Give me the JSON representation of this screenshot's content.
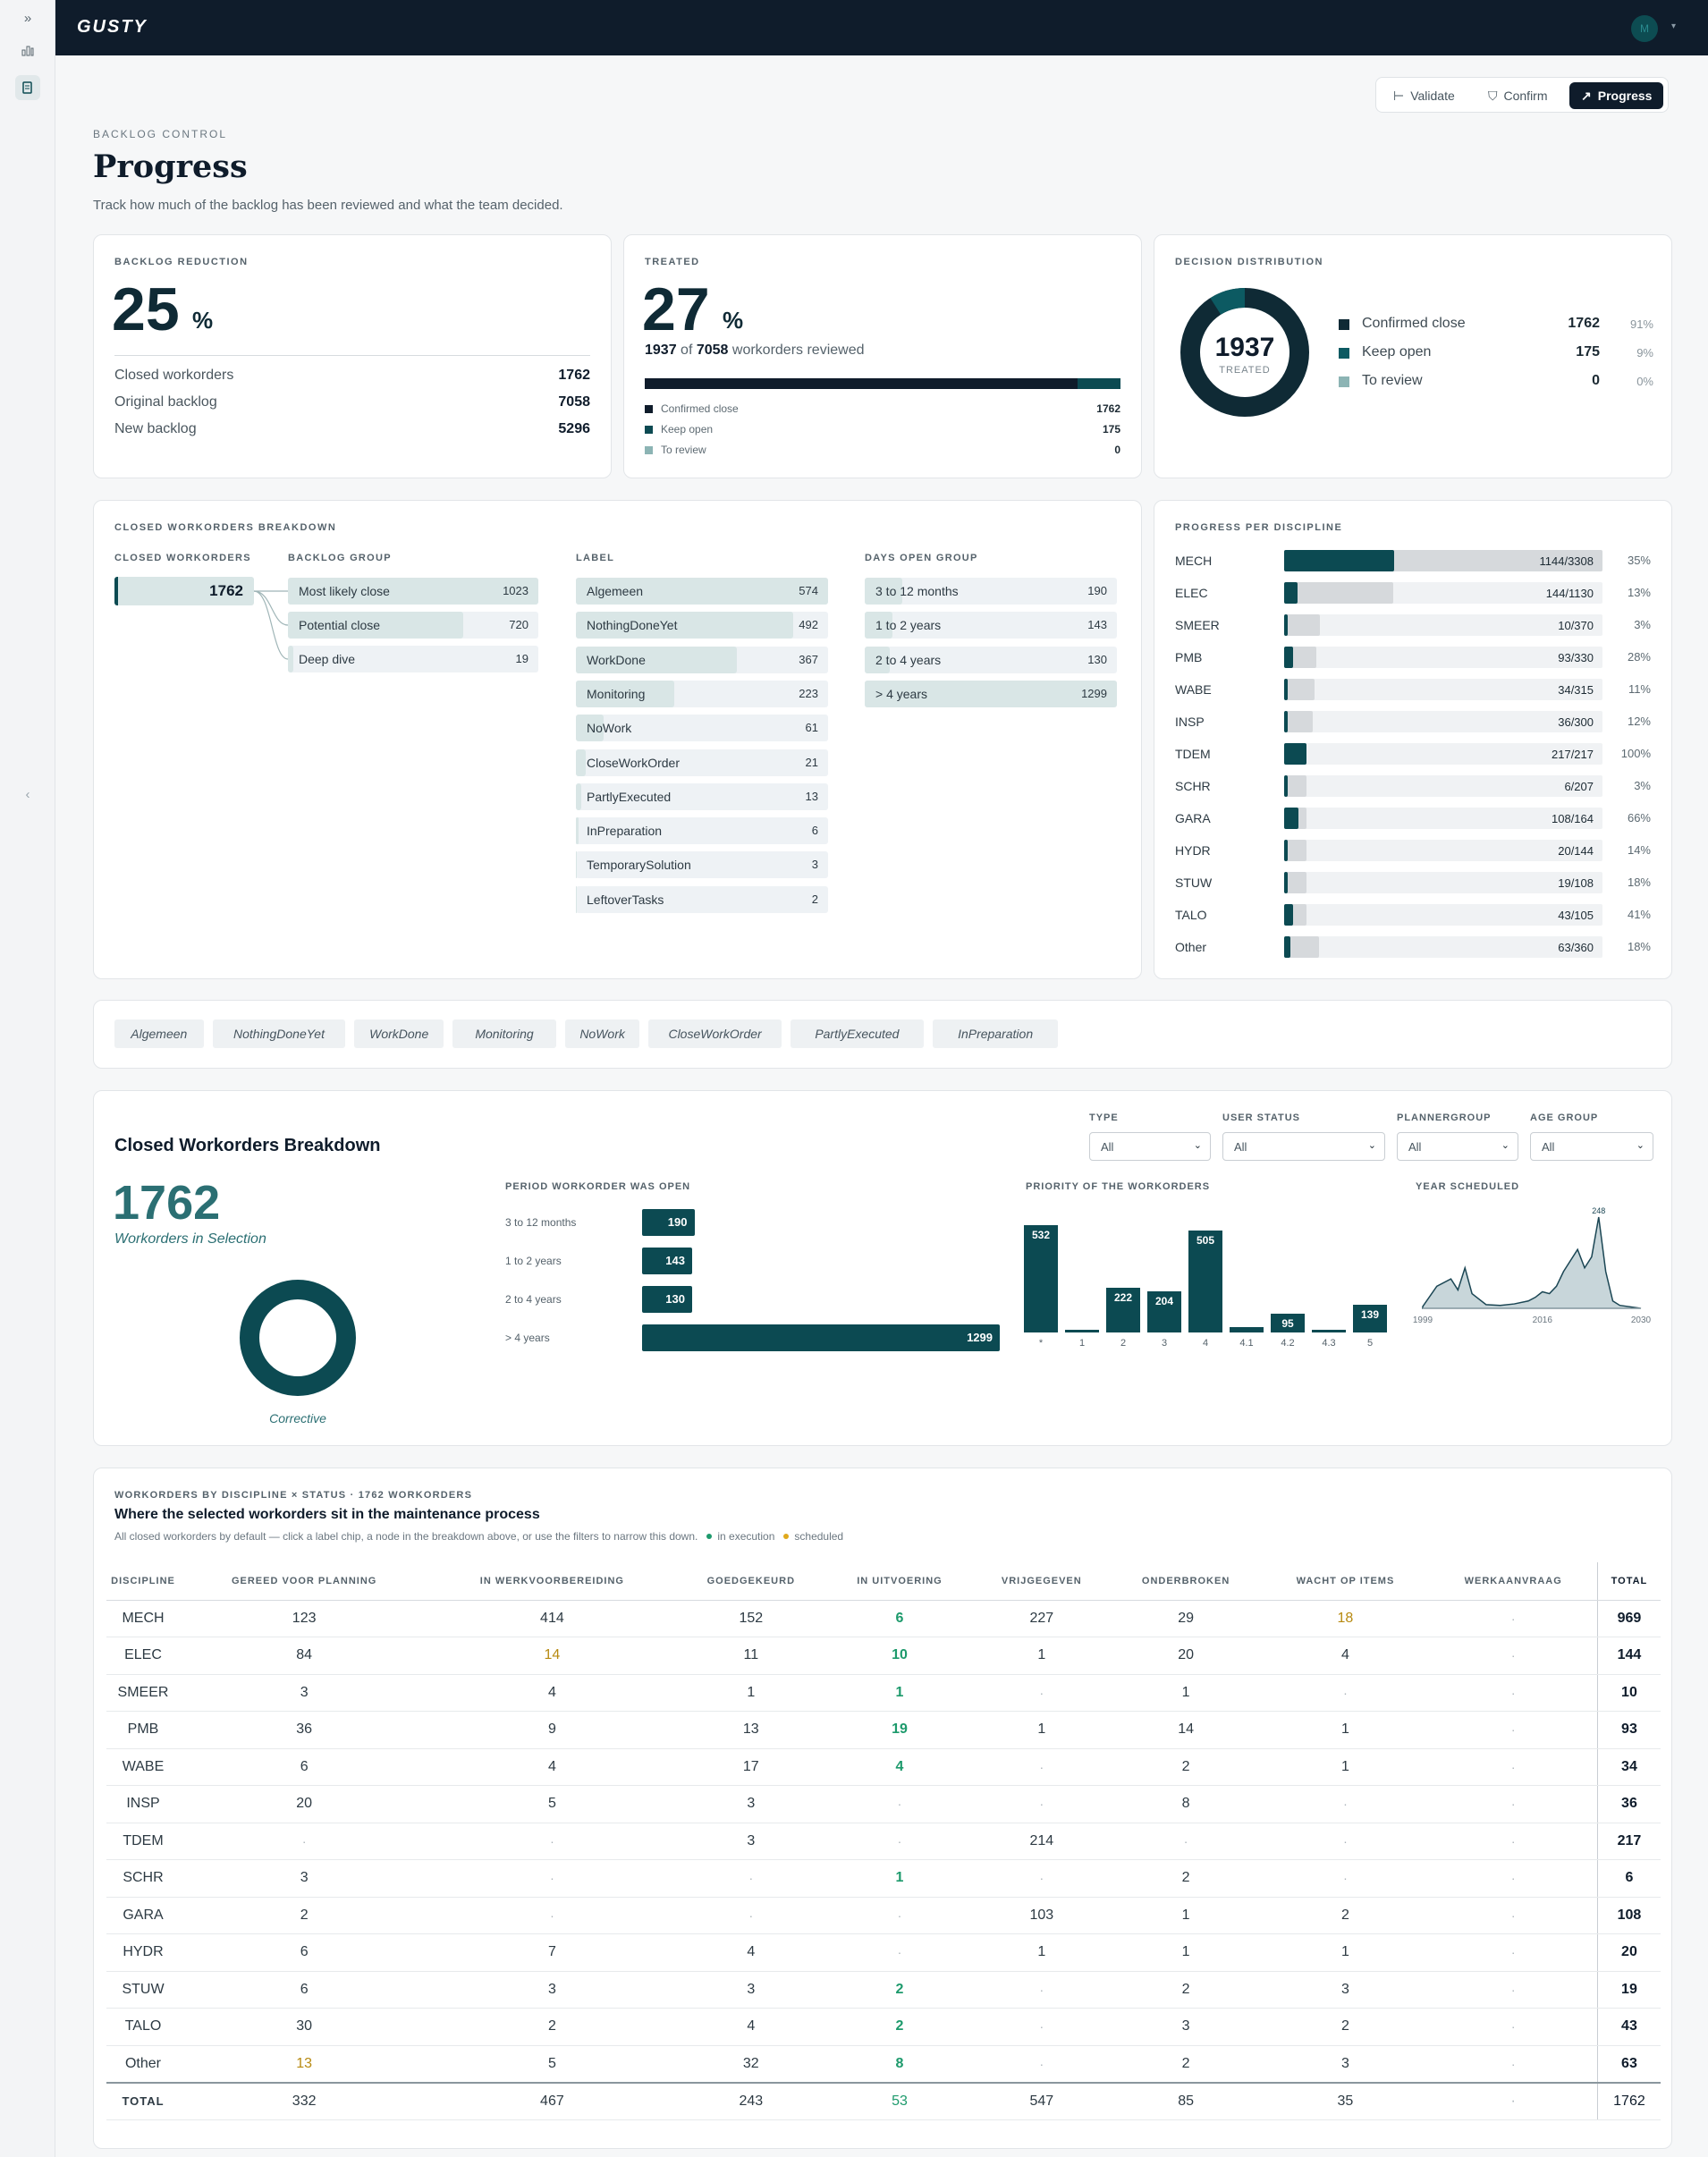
{
  "app": {
    "logo": "GUSTY",
    "avatar_initial": "M"
  },
  "tabs": [
    {
      "label": "Validate",
      "icon": "validate-icon"
    },
    {
      "label": "Confirm",
      "icon": "shield-check-icon"
    },
    {
      "label": "Progress",
      "icon": "trend-up-icon",
      "active": true
    }
  ],
  "page": {
    "eyebrow": "BACKLOG CONTROL",
    "title": "Progress",
    "subtitle": "Track how much of the backlog has been reviewed and what the team decided."
  },
  "reduction": {
    "title": "BACKLOG REDUCTION",
    "value": "25",
    "unit": "%",
    "rows": [
      {
        "label": "Closed workorders",
        "value": "1762"
      },
      {
        "label": "Original backlog",
        "value": "7058"
      },
      {
        "label": "New backlog",
        "value": "5296"
      }
    ]
  },
  "treated": {
    "title": "TREATED",
    "value": "27",
    "unit": "%",
    "count": "1937",
    "of_word": "of",
    "total": "7058",
    "suffix": "workorders reviewed",
    "bar_fraction_confirmed": 0.91,
    "bar_fraction_open": 0.09,
    "rows": [
      {
        "label": "Confirmed close",
        "value": "1762",
        "color": "#0f1c2b"
      },
      {
        "label": "Keep open",
        "value": "175",
        "color": "#0c4a52"
      },
      {
        "label": "To review",
        "value": "0",
        "color": "#8cb4b4"
      }
    ]
  },
  "decision": {
    "title": "DECISION DISTRIBUTION",
    "center_value": "1937",
    "center_label": "TREATED",
    "rows": [
      {
        "label": "Confirmed close",
        "value": "1762",
        "pct": "91%",
        "color": "#0f2a35",
        "fraction": 0.91
      },
      {
        "label": "Keep open",
        "value": "175",
        "pct": "9%",
        "color": "#0c5a62",
        "fraction": 0.09
      },
      {
        "label": "To review",
        "value": "0",
        "pct": "0%",
        "color": "#8cb4b4",
        "fraction": 0
      }
    ]
  },
  "breakdown": {
    "title": "CLOSED WORKORDERS BREAKDOWN",
    "col_closed": "CLOSED WORKORDERS",
    "col_backlog": "BACKLOG GROUP",
    "col_label": "LABEL",
    "col_days": "DAYS OPEN GROUP",
    "total": "1762",
    "backlog_groups": [
      {
        "label": "Most likely close",
        "value": "1023",
        "fraction": 1.0
      },
      {
        "label": "Potential close",
        "value": "720",
        "fraction": 0.7
      },
      {
        "label": "Deep dive",
        "value": "19",
        "fraction": 0.02
      }
    ],
    "labels": [
      {
        "label": "Algemeen",
        "value": "574",
        "fraction": 1.0
      },
      {
        "label": "NothingDoneYet",
        "value": "492",
        "fraction": 0.86
      },
      {
        "label": "WorkDone",
        "value": "367",
        "fraction": 0.64
      },
      {
        "label": "Monitoring",
        "value": "223",
        "fraction": 0.39
      },
      {
        "label": "NoWork",
        "value": "61",
        "fraction": 0.11
      },
      {
        "label": "CloseWorkOrder",
        "value": "21",
        "fraction": 0.04
      },
      {
        "label": "PartlyExecuted",
        "value": "13",
        "fraction": 0.02
      },
      {
        "label": "InPreparation",
        "value": "6",
        "fraction": 0.01
      },
      {
        "label": "TemporarySolution",
        "value": "3",
        "fraction": 0.005
      },
      {
        "label": "LeftoverTasks",
        "value": "2",
        "fraction": 0.003
      }
    ],
    "days": [
      {
        "label": "3 to 12 months",
        "value": "190",
        "fraction": 0.15
      },
      {
        "label": "1 to 2 years",
        "value": "143",
        "fraction": 0.11
      },
      {
        "label": "2 to 4 years",
        "value": "130",
        "fraction": 0.1
      },
      {
        "label": "> 4 years",
        "value": "1299",
        "fraction": 1.0
      }
    ]
  },
  "discipline": {
    "title": "PROGRESS PER DISCIPLINE",
    "rows": [
      {
        "name": "MECH",
        "value": "1144/3308",
        "pct": "35%",
        "done": 1144,
        "total": 3308
      },
      {
        "name": "ELEC",
        "value": "144/1130",
        "pct": "13%",
        "done": 144,
        "total": 1130
      },
      {
        "name": "SMEER",
        "value": "10/370",
        "pct": "3%",
        "done": 10,
        "total": 370
      },
      {
        "name": "PMB",
        "value": "93/330",
        "pct": "28%",
        "done": 93,
        "total": 330
      },
      {
        "name": "WABE",
        "value": "34/315",
        "pct": "11%",
        "done": 34,
        "total": 315
      },
      {
        "name": "INSP",
        "value": "36/300",
        "pct": "12%",
        "done": 36,
        "total": 300
      },
      {
        "name": "TDEM",
        "value": "217/217",
        "pct": "100%",
        "done": 217,
        "total": 217
      },
      {
        "name": "SCHR",
        "value": "6/207",
        "pct": "3%",
        "done": 6,
        "total": 207
      },
      {
        "name": "GARA",
        "value": "108/164",
        "pct": "66%",
        "done": 108,
        "total": 164
      },
      {
        "name": "HYDR",
        "value": "20/144",
        "pct": "14%",
        "done": 20,
        "total": 144
      },
      {
        "name": "STUW",
        "value": "19/108",
        "pct": "18%",
        "done": 19,
        "total": 108
      },
      {
        "name": "TALO",
        "value": "43/105",
        "pct": "41%",
        "done": 43,
        "total": 105
      },
      {
        "name": "Other",
        "value": "63/360",
        "pct": "18%",
        "done": 63,
        "total": 360
      }
    ]
  },
  "chips": [
    "Algemeen",
    "NothingDoneYet",
    "WorkDone",
    "Monitoring",
    "NoWork",
    "CloseWorkOrder",
    "PartlyExecuted",
    "InPreparation"
  ],
  "selection": {
    "title": "Closed Workorders Breakdown",
    "count": "1762",
    "count_label": "Workorders in Selection",
    "donut_label": "Corrective",
    "filters": [
      {
        "label": "TYPE",
        "value": "All"
      },
      {
        "label": "USER STATUS",
        "value": "All"
      },
      {
        "label": "PLANNERGROUP",
        "value": "All"
      },
      {
        "label": "AGE GROUP",
        "value": "All"
      }
    ]
  },
  "chart_data": [
    {
      "type": "bar",
      "orientation": "horizontal",
      "title": "PERIOD WORKORDER WAS OPEN",
      "categories": [
        "3 to 12 months",
        "1 to 2 years",
        "2 to 4 years",
        "> 4 years"
      ],
      "values": [
        190,
        143,
        130,
        1299
      ]
    },
    {
      "type": "bar",
      "title": "PRIORITY OF THE WORKORDERS",
      "categories": [
        "*",
        "1",
        "2",
        "3",
        "4",
        "4.1",
        "4.2",
        "4.3",
        "5"
      ],
      "values": [
        532,
        12,
        222,
        204,
        505,
        25,
        95,
        10,
        139
      ],
      "labels": [
        "532",
        "",
        "222",
        "204",
        "505",
        "",
        "95",
        "",
        "139"
      ]
    },
    {
      "type": "area",
      "title": "YEAR SCHEDULED",
      "x": [
        1999,
        2001,
        2003,
        2004,
        2005,
        2006,
        2008,
        2010,
        2012,
        2014,
        2015,
        2016,
        2017,
        2018,
        2019,
        2020,
        2021,
        2022,
        2023,
        2024,
        2025,
        2026,
        2027,
        2030
      ],
      "values": [
        5,
        60,
        80,
        50,
        110,
        40,
        10,
        8,
        12,
        20,
        30,
        45,
        40,
        60,
        100,
        130,
        160,
        110,
        140,
        248,
        100,
        20,
        8,
        0
      ],
      "x_ticks": [
        "1999",
        "2016",
        "2030"
      ],
      "peak_label": "248"
    }
  ],
  "matrix": {
    "eyebrow": "WORKORDERS BY DISCIPLINE × STATUS · 1762 WORKORDERS",
    "title": "Where the selected workorders sit in the maintenance process",
    "note": "All closed workorders by default — click a label chip, a node in the breakdown above, or use the filters to narrow this down.",
    "legend_exec": "in execution",
    "legend_sched": "scheduled",
    "color_exec": "#1d9a6c",
    "color_sched": "#e0a91c",
    "columns": [
      "DISCIPLINE",
      "GEREED VOOR PLANNING",
      "IN WERKVOORBEREIDING",
      "GOEDGEKEURD",
      "IN UITVOERING",
      "VRIJGEGEVEN",
      "ONDERBROKEN",
      "WACHT OP ITEMS",
      "WERKAANVRAAG",
      "TOTAL"
    ],
    "rows": [
      [
        "MECH",
        "123",
        "414",
        "152",
        "6",
        "227",
        "29",
        "18",
        "·",
        "969"
      ],
      [
        "ELEC",
        "84",
        "14",
        "11",
        "10",
        "1",
        "20",
        "4",
        "·",
        "144"
      ],
      [
        "SMEER",
        "3",
        "4",
        "1",
        "1",
        "·",
        "1",
        "·",
        "·",
        "10"
      ],
      [
        "PMB",
        "36",
        "9",
        "13",
        "19",
        "1",
        "14",
        "1",
        "·",
        "93"
      ],
      [
        "WABE",
        "6",
        "4",
        "17",
        "4",
        "·",
        "2",
        "1",
        "·",
        "34"
      ],
      [
        "INSP",
        "20",
        "5",
        "3",
        "·",
        "·",
        "8",
        "·",
        "·",
        "36"
      ],
      [
        "TDEM",
        "·",
        "·",
        "3",
        "·",
        "214",
        "·",
        "·",
        "·",
        "217"
      ],
      [
        "SCHR",
        "3",
        "·",
        "·",
        "1",
        "·",
        "2",
        "·",
        "·",
        "6"
      ],
      [
        "GARA",
        "2",
        "·",
        "·",
        "·",
        "103",
        "1",
        "2",
        "·",
        "108"
      ],
      [
        "HYDR",
        "6",
        "7",
        "4",
        "·",
        "1",
        "1",
        "1",
        "·",
        "20"
      ],
      [
        "STUW",
        "6",
        "3",
        "3",
        "2",
        "·",
        "2",
        "3",
        "·",
        "19"
      ],
      [
        "TALO",
        "30",
        "2",
        "4",
        "2",
        "·",
        "3",
        "2",
        "·",
        "43"
      ],
      [
        "Other",
        "13",
        "5",
        "32",
        "8",
        "·",
        "2",
        "3",
        "·",
        "63"
      ]
    ],
    "total_row": [
      "TOTAL",
      "332",
      "467",
      "243",
      "53",
      "547",
      "85",
      "35",
      "·",
      "1762"
    ]
  }
}
